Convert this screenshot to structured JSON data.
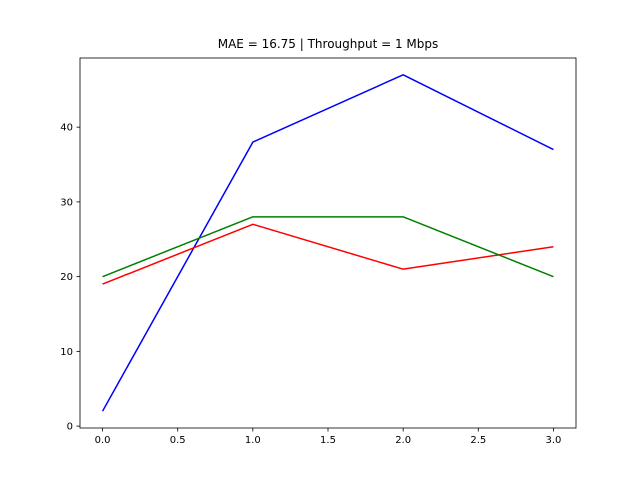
{
  "chart_data": {
    "type": "line",
    "title": "MAE = 16.75 | Throughput = 1 Mbps",
    "xlabel": "",
    "ylabel": "",
    "x": [
      0,
      1,
      2,
      3
    ],
    "xlim": [
      -0.15,
      3.15
    ],
    "ylim": [
      -0.25,
      49.25
    ],
    "xticks": [
      0.0,
      0.5,
      1.0,
      1.5,
      2.0,
      2.5,
      3.0
    ],
    "xtick_labels": [
      "0.0",
      "0.5",
      "1.0",
      "1.5",
      "2.0",
      "2.5",
      "3.0"
    ],
    "yticks": [
      0,
      10,
      20,
      30,
      40
    ],
    "ytick_labels": [
      "0",
      "10",
      "20",
      "30",
      "40"
    ],
    "grid": false,
    "legend": "none",
    "series": [
      {
        "color": "#0000ff",
        "values": [
          2,
          38,
          47,
          37
        ]
      },
      {
        "color": "#ff0000",
        "values": [
          19,
          27,
          21,
          24
        ]
      },
      {
        "color": "#008000",
        "values": [
          20,
          28,
          28,
          20
        ]
      }
    ]
  }
}
